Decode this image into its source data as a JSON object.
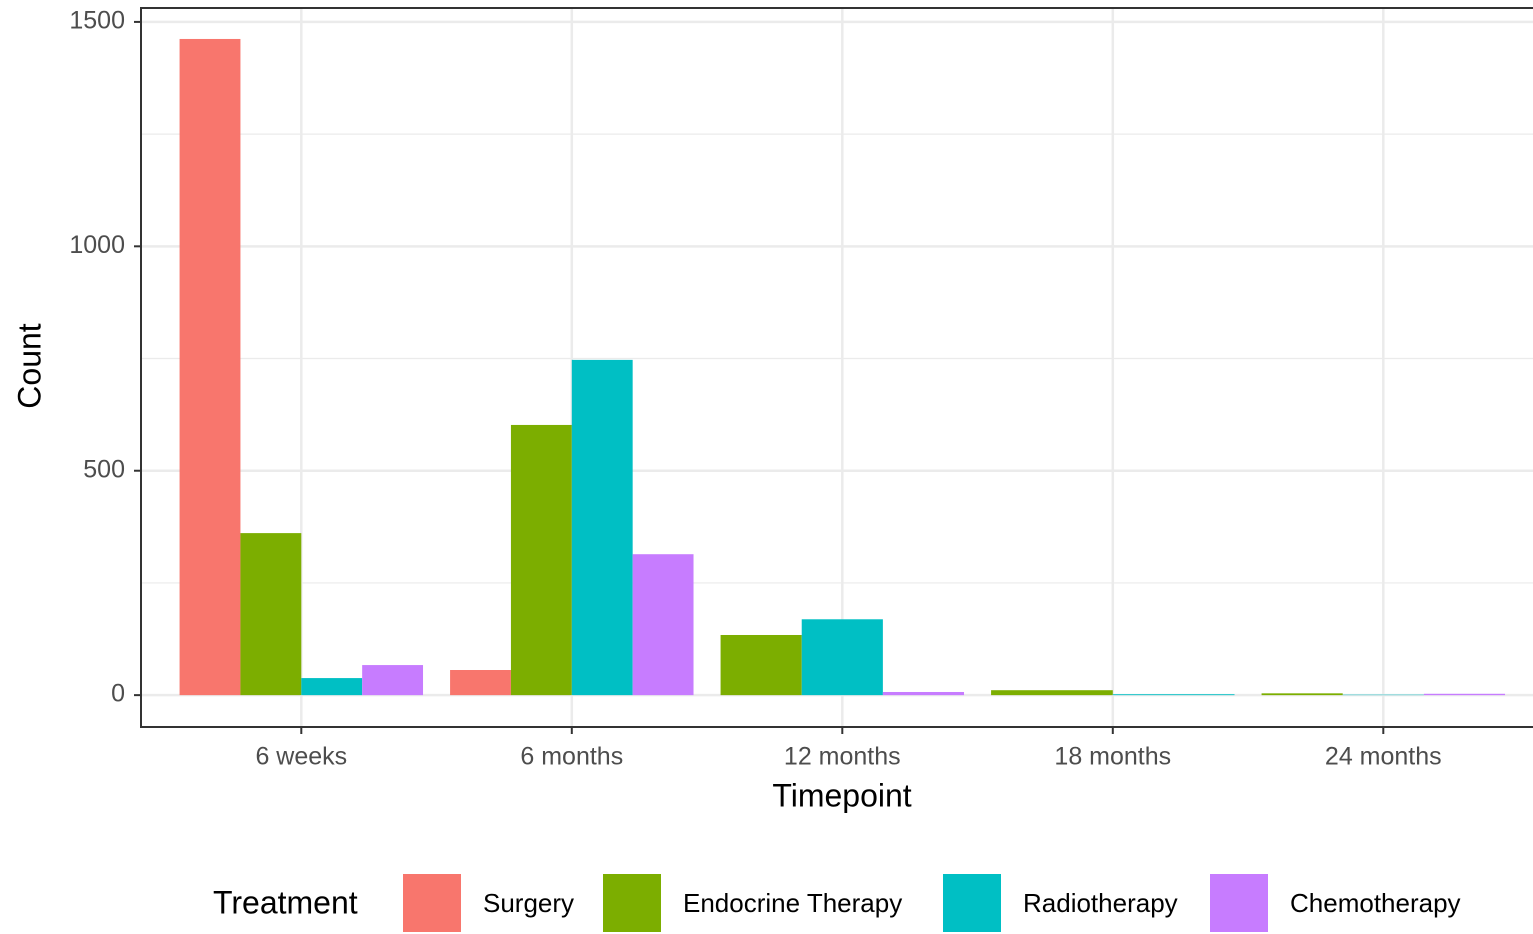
{
  "chart_data": {
    "type": "bar",
    "x_label": "Timepoint",
    "y_label": "Count",
    "legend_title": "Treatment",
    "categories": [
      "6 weeks",
      "6 months",
      "12 months",
      "18 months",
      "24 months"
    ],
    "series": [
      {
        "name": "Surgery",
        "color": "#F8766D",
        "values": [
          1462,
          56,
          null,
          null,
          null
        ]
      },
      {
        "name": "Endocrine Therapy",
        "color": "#7CAE00",
        "values": [
          361,
          602,
          134,
          11,
          4
        ]
      },
      {
        "name": "Radiotherapy",
        "color": "#00BFC4",
        "values": [
          38,
          747,
          169,
          2,
          1
        ]
      },
      {
        "name": "Chemotherapy",
        "color": "#C77CFF",
        "values": [
          67,
          314,
          7,
          null,
          3
        ]
      }
    ],
    "ylim": [
      -71,
      1531
    ],
    "yticks": [
      0,
      500,
      1000,
      1500
    ],
    "grid": true,
    "legend_position": "bottom"
  }
}
